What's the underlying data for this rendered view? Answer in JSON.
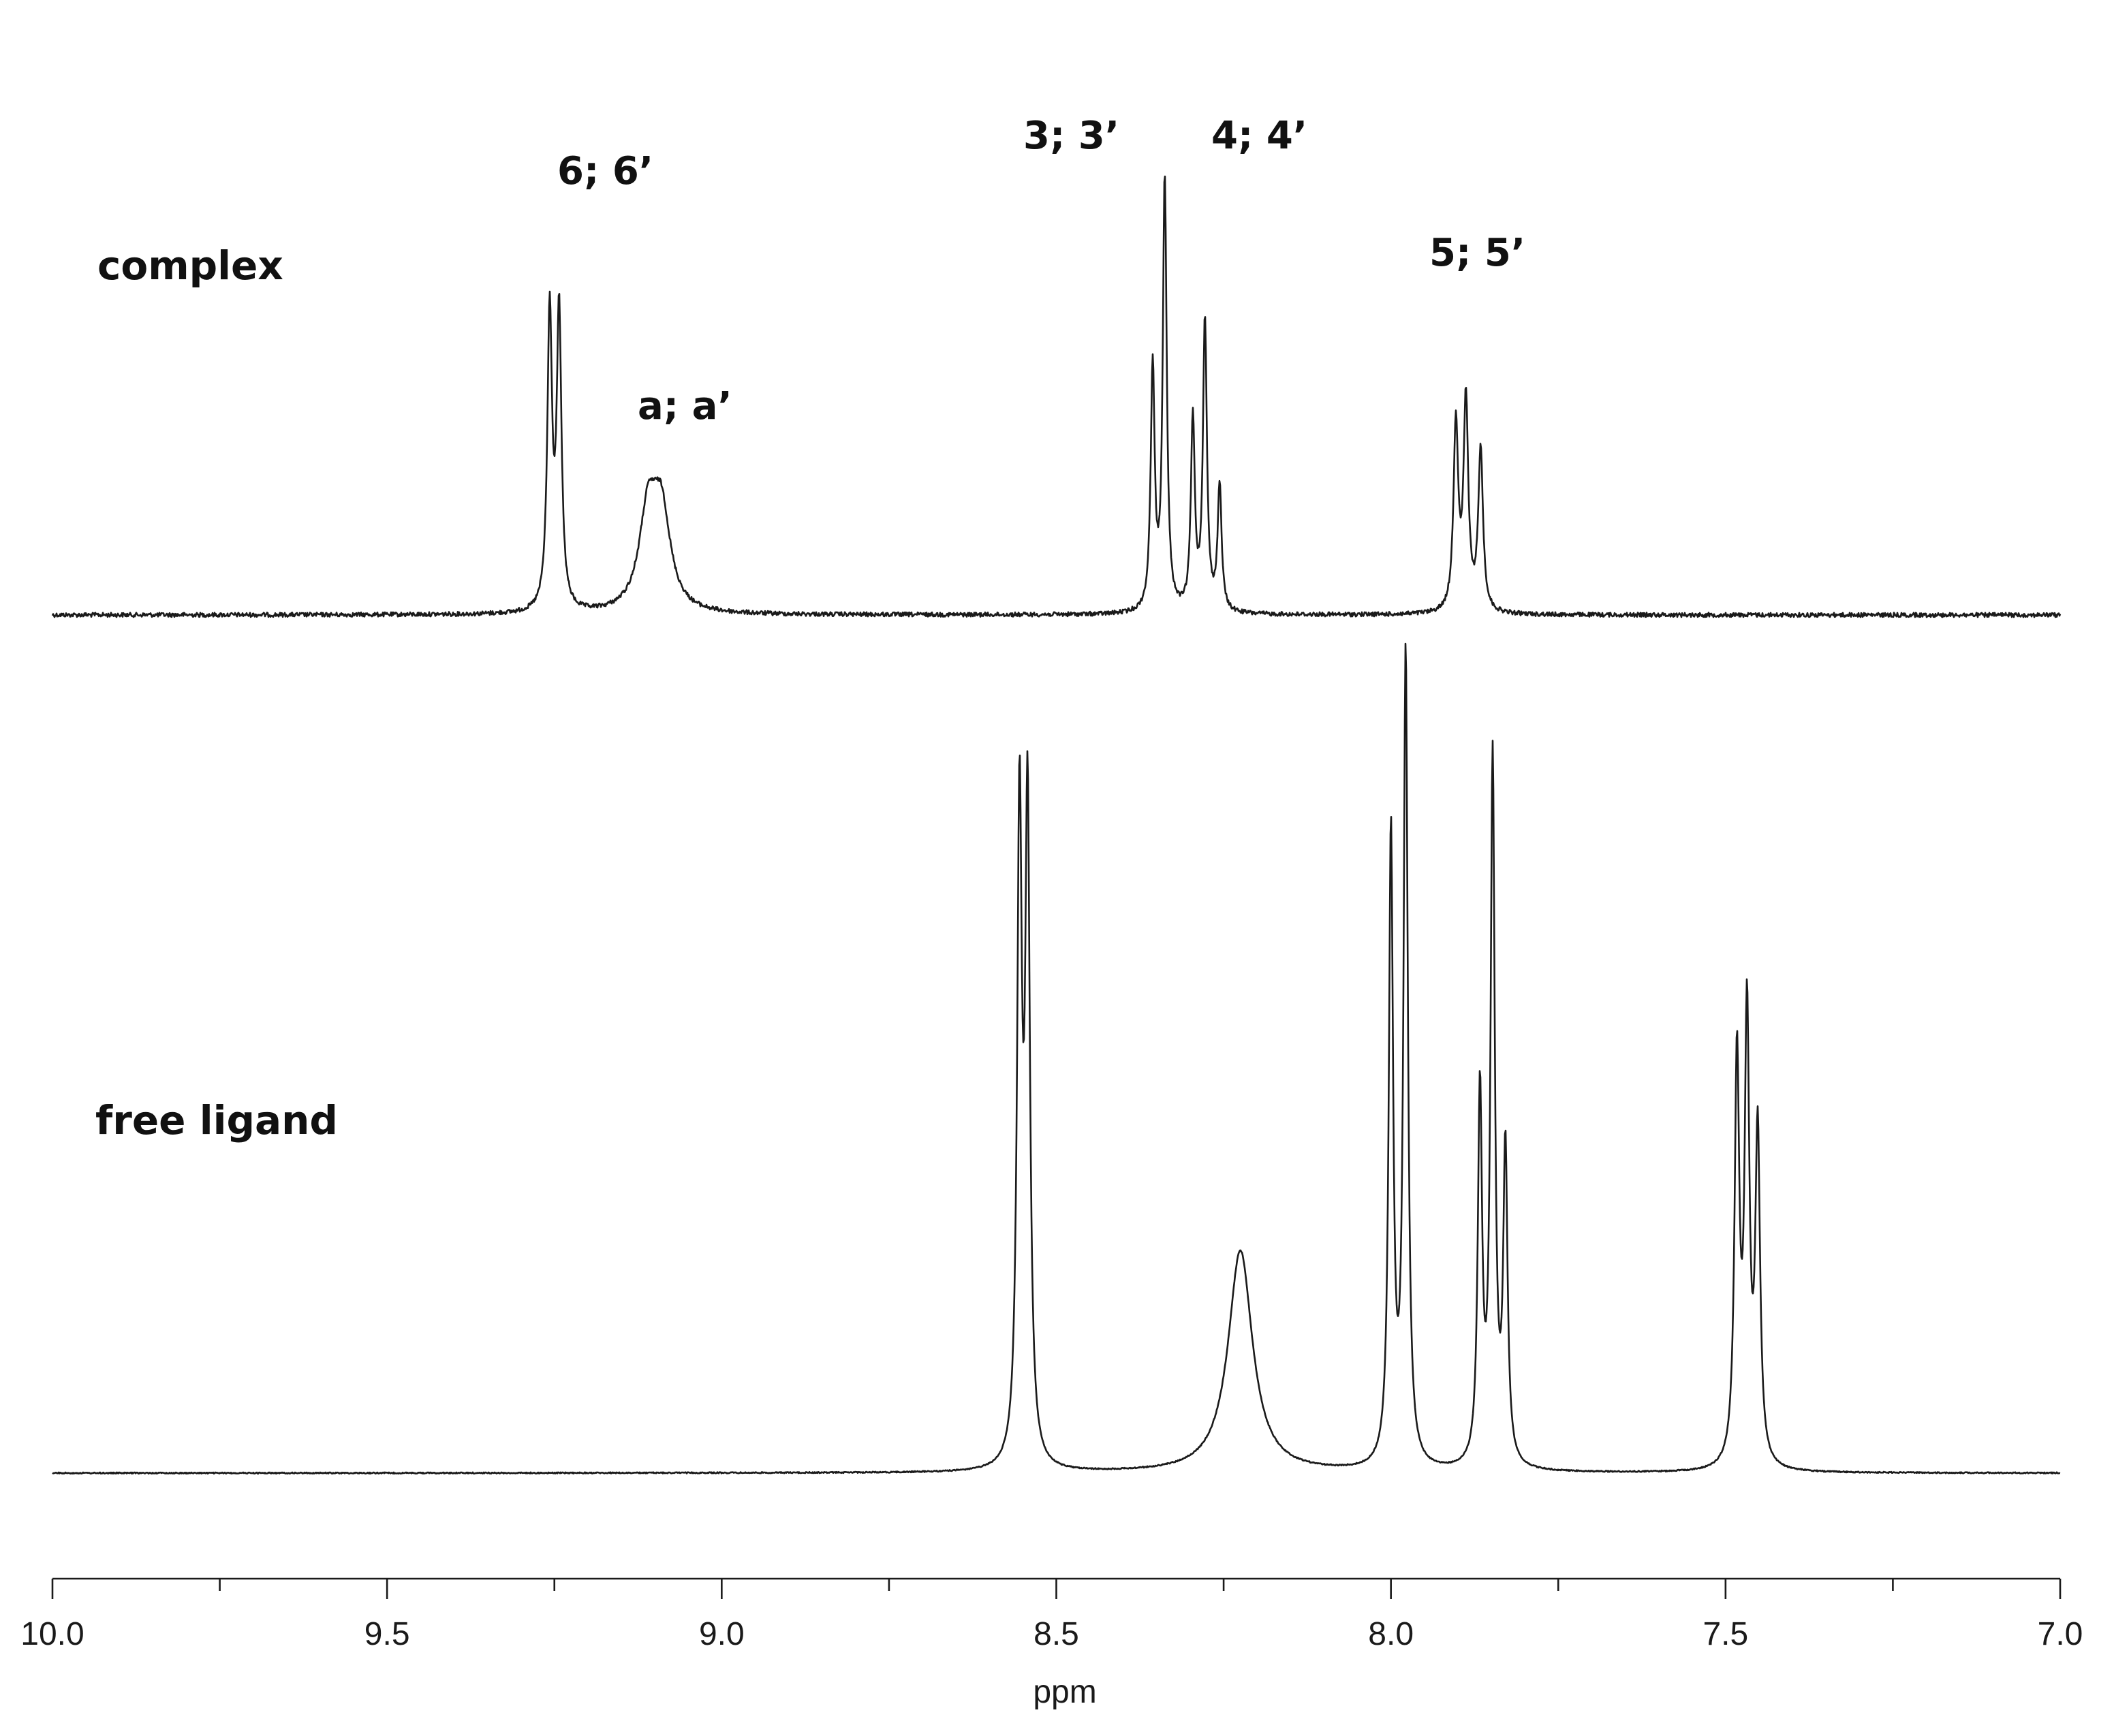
{
  "chart_data": {
    "type": "line",
    "title": "",
    "xlabel": "ppm",
    "ylabel": "",
    "xlim": [
      10.0,
      7.0
    ],
    "x_reversed": true,
    "x_ticks": [
      10.0,
      9.5,
      9.0,
      8.5,
      8.0,
      7.5,
      7.0
    ],
    "x_tick_labels": [
      "10.0",
      "9.5",
      "9.0",
      "8.5",
      "8.0",
      "7.5",
      "7.0"
    ],
    "x_minor_tick_step": 0.25,
    "grid": false,
    "legend": "none",
    "series": [
      {
        "name": "complex",
        "baseline_rel": 0,
        "peaks": [
          {
            "ppm": 9.257,
            "h": 0.82,
            "w": 0.0042
          },
          {
            "ppm": 9.243,
            "h": 0.82,
            "w": 0.0042
          },
          {
            "ppm": 9.11,
            "h": 0.26,
            "w": 0.016
          },
          {
            "ppm": 9.09,
            "h": 0.26,
            "w": 0.016
          },
          {
            "ppm": 8.356,
            "h": 0.68,
            "w": 0.0035
          },
          {
            "ppm": 8.338,
            "h": 1.2,
            "w": 0.0035
          },
          {
            "ppm": 8.296,
            "h": 0.53,
            "w": 0.0035
          },
          {
            "ppm": 8.278,
            "h": 0.81,
            "w": 0.0035
          },
          {
            "ppm": 8.256,
            "h": 0.35,
            "w": 0.0035
          },
          {
            "ppm": 7.903,
            "h": 0.52,
            "w": 0.0042
          },
          {
            "ppm": 7.888,
            "h": 0.58,
            "w": 0.0042
          },
          {
            "ppm": 7.866,
            "h": 0.45,
            "w": 0.0042
          }
        ]
      },
      {
        "name": "free ligand",
        "baseline_rel": 0,
        "peaks": [
          {
            "ppm": 8.555,
            "h": 1.2,
            "w": 0.0042
          },
          {
            "ppm": 8.543,
            "h": 1.2,
            "w": 0.0042
          },
          {
            "ppm": 8.225,
            "h": 0.41,
            "w": 0.022
          },
          {
            "ppm": 8.0,
            "h": 1.17,
            "w": 0.0038
          },
          {
            "ppm": 7.978,
            "h": 1.5,
            "w": 0.0038
          },
          {
            "ppm": 7.867,
            "h": 0.69,
            "w": 0.0038
          },
          {
            "ppm": 7.848,
            "h": 1.3,
            "w": 0.0038
          },
          {
            "ppm": 7.829,
            "h": 0.58,
            "w": 0.0038
          },
          {
            "ppm": 7.483,
            "h": 0.75,
            "w": 0.0042
          },
          {
            "ppm": 7.468,
            "h": 0.82,
            "w": 0.0042
          },
          {
            "ppm": 7.452,
            "h": 0.61,
            "w": 0.0042
          }
        ]
      }
    ],
    "annotations": [
      {
        "text": "6; 6’",
        "series": "complex",
        "ppm": 9.21
      },
      {
        "text": "a; a’",
        "series": "complex",
        "ppm": 9.05
      },
      {
        "text": "3; 3’",
        "series": "complex",
        "ppm": 8.42
      },
      {
        "text": "4; 4’",
        "series": "complex",
        "ppm": 8.18
      },
      {
        "text": "5; 5’",
        "series": "complex",
        "ppm": 7.84
      }
    ],
    "panel_labels": [
      "complex",
      "free ligand"
    ]
  }
}
